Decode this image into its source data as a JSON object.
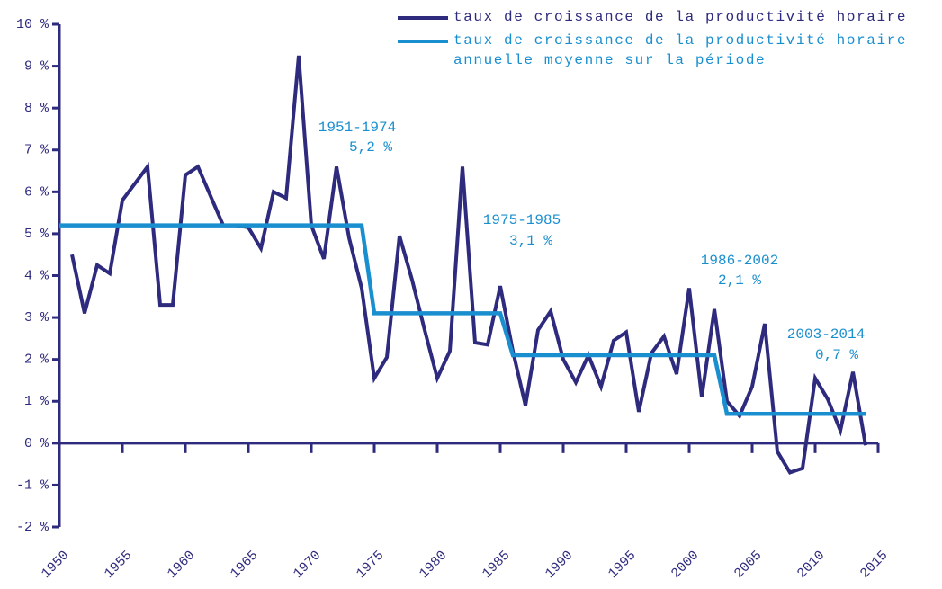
{
  "chart_data": {
    "type": "line",
    "series": [
      {
        "name": "taux de croissance de la productivité horaire",
        "color": "#2e2a7d",
        "x": [
          1951,
          1952,
          1953,
          1954,
          1955,
          1956,
          1957,
          1958,
          1959,
          1960,
          1961,
          1962,
          1963,
          1964,
          1965,
          1966,
          1967,
          1968,
          1969,
          1970,
          1971,
          1972,
          1973,
          1974,
          1975,
          1976,
          1977,
          1978,
          1979,
          1980,
          1981,
          1982,
          1983,
          1984,
          1985,
          1986,
          1987,
          1988,
          1989,
          1990,
          1991,
          1992,
          1993,
          1994,
          1995,
          1996,
          1997,
          1998,
          1999,
          2000,
          2001,
          2002,
          2003,
          2004,
          2005,
          2006,
          2007,
          2008,
          2009,
          2010,
          2011,
          2012,
          2013,
          2014
        ],
        "values": [
          4.5,
          3.1,
          4.25,
          4.05,
          5.8,
          6.2,
          6.6,
          3.3,
          3.3,
          6.4,
          6.6,
          5.9,
          5.2,
          5.2,
          5.15,
          4.65,
          6.0,
          5.85,
          9.25,
          5.2,
          4.4,
          6.6,
          4.9,
          3.7,
          1.55,
          2.05,
          4.95,
          3.9,
          2.7,
          1.55,
          2.2,
          6.6,
          2.4,
          2.35,
          3.75,
          2.2,
          0.9,
          2.7,
          3.15,
          2.0,
          1.45,
          2.1,
          1.35,
          2.45,
          2.65,
          0.75,
          2.15,
          2.55,
          1.65,
          3.7,
          1.1,
          3.2,
          1.0,
          0.65,
          1.35,
          2.85,
          -0.2,
          -0.7,
          -0.6,
          1.55,
          1.05,
          0.3,
          1.7,
          -0.05
        ]
      },
      {
        "name": "taux de croissance de la productivité horaire annuelle moyenne sur la période",
        "color": "#1a8fcf",
        "x": [
          1950,
          1974,
          1975,
          1985,
          1986,
          2002,
          2003,
          2014
        ],
        "values": [
          5.2,
          5.2,
          3.1,
          3.1,
          2.1,
          2.1,
          0.7,
          0.7
        ]
      }
    ],
    "annotations": [
      {
        "period": "1951-1974",
        "rate": "5,2 %"
      },
      {
        "period": "1975-1985",
        "rate": "3,1 %"
      },
      {
        "period": "1986-2002",
        "rate": "2,1 %"
      },
      {
        "period": "2003-2014",
        "rate": "0,7 %"
      }
    ],
    "xlim": [
      1950,
      2015
    ],
    "xticks": [
      1950,
      1955,
      1960,
      1965,
      1970,
      1975,
      1980,
      1985,
      1990,
      1995,
      2000,
      2005,
      2010,
      2015
    ],
    "ylim": [
      -2,
      10
    ],
    "yticks": [
      {
        "value": -2,
        "label": "-2 %"
      },
      {
        "value": -1,
        "label": "-1 %"
      },
      {
        "value": 0,
        "label": "0 %"
      },
      {
        "value": 1,
        "label": "1 %"
      },
      {
        "value": 2,
        "label": "2 %"
      },
      {
        "value": 3,
        "label": "3 %"
      },
      {
        "value": 4,
        "label": "4 %"
      },
      {
        "value": 5,
        "label": "5 %"
      },
      {
        "value": 6,
        "label": "6 %"
      },
      {
        "value": 7,
        "label": "7 %"
      },
      {
        "value": 8,
        "label": "8 %"
      },
      {
        "value": 9,
        "label": "9 %"
      },
      {
        "value": 10,
        "label": "10 %"
      }
    ],
    "legend": "top-right",
    "grid": false
  }
}
